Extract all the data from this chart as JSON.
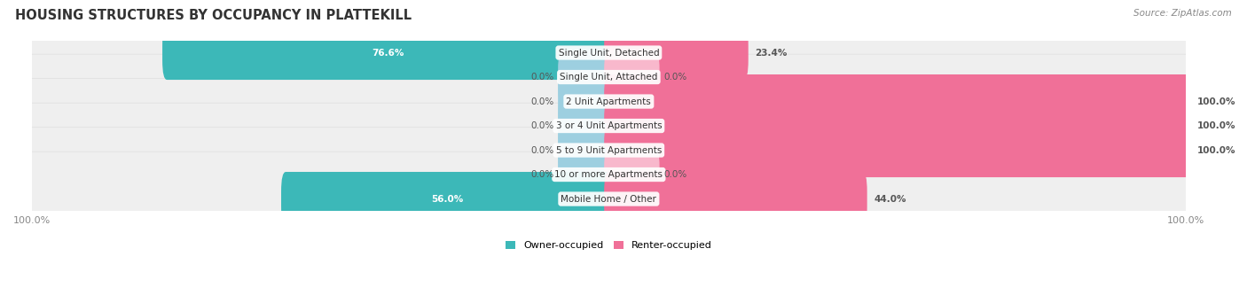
{
  "title": "HOUSING STRUCTURES BY OCCUPANCY IN PLATTEKILL",
  "source": "Source: ZipAtlas.com",
  "categories": [
    "Single Unit, Detached",
    "Single Unit, Attached",
    "2 Unit Apartments",
    "3 or 4 Unit Apartments",
    "5 to 9 Unit Apartments",
    "10 or more Apartments",
    "Mobile Home / Other"
  ],
  "owner_pct": [
    76.6,
    0.0,
    0.0,
    0.0,
    0.0,
    0.0,
    56.0
  ],
  "renter_pct": [
    23.4,
    0.0,
    100.0,
    100.0,
    100.0,
    0.0,
    44.0
  ],
  "owner_color": "#3CB8B8",
  "renter_color": "#F07098",
  "owner_color_light": "#9DCFE0",
  "renter_color_light": "#F8B8CC",
  "row_bg_color": "#EFEFEF",
  "row_border_color": "#DEDEDE",
  "title_fontsize": 10.5,
  "source_fontsize": 7.5,
  "label_fontsize": 7.5,
  "pct_fontsize": 7.5,
  "tick_fontsize": 8,
  "legend_fontsize": 8,
  "figsize": [
    14.06,
    3.42
  ],
  "dpi": 100,
  "stub_size": 8.0,
  "max_pct": 100
}
